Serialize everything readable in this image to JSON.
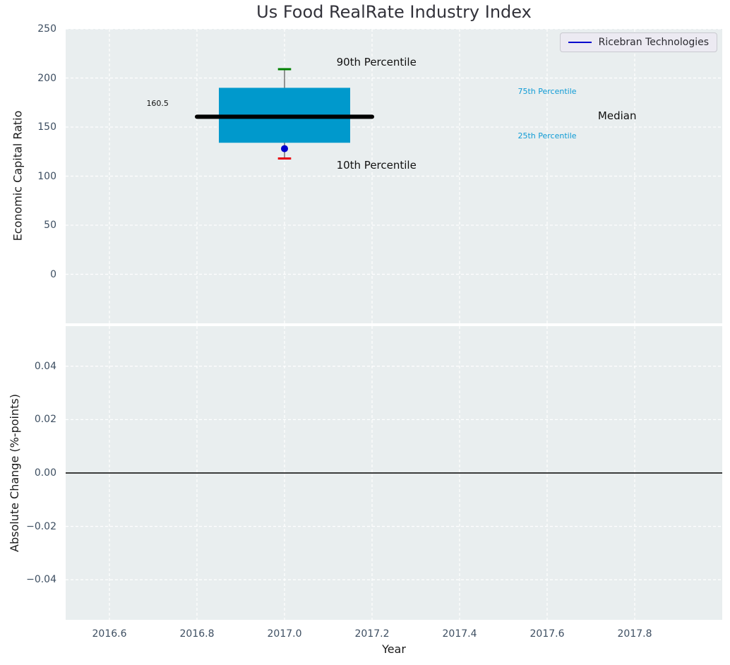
{
  "figure": {
    "title": "Us Food RealRate Industry Index"
  },
  "legend": {
    "label": "Ricebran Technologies"
  },
  "colors": {
    "figure_background": "#ffffff",
    "axes_background": "#e9eeef",
    "grid": "#ffffff",
    "tick_label": "#3d4e61",
    "title": "#32323a",
    "axis_label": "#1a1a1a",
    "box_fill": "#0099cc",
    "median_line": "#000000",
    "whisker": "#555555",
    "p90_cap": "#008000",
    "p10_cap": "#e8000b",
    "company_marker": "#0000cd",
    "legend_line": "#0000cd",
    "legend_background": "#eceaf2",
    "legend_border": "#c9c9d0",
    "legend_text": "#2b2b31",
    "percentile_text": "#0f9bd5",
    "annotation_text": "#111111",
    "zero_line": "#000000"
  },
  "chart_data": [
    {
      "type": "boxplot",
      "title": "Us Food RealRate Industry Index",
      "ylabel": "Economic Capital Ratio",
      "xlim": [
        2016.5,
        2018.0
      ],
      "ylim": [
        -50,
        250
      ],
      "yticks": [
        250,
        200,
        150,
        100,
        50,
        0
      ],
      "ytick_labels": [
        "250",
        "200",
        "150",
        "100",
        "50",
        "0"
      ],
      "xticks": [
        2016.6,
        2016.8,
        2017.0,
        2017.2,
        2017.4,
        2017.6,
        2017.8
      ],
      "xtick_labels": [],
      "grid": "white-dashed",
      "legend_position": "upper right",
      "box": {
        "x": 2017.0,
        "p10": 118,
        "p25": 134,
        "median": 160.5,
        "p75": 190,
        "p90": 209,
        "box_halfwidth": 0.15,
        "median_halfwidth": 0.2,
        "cap_halfwidth": 0.015
      },
      "company_series": {
        "name": "Ricebran Technologies",
        "x": [
          2017.0
        ],
        "y": [
          128
        ]
      },
      "annotations": [
        {
          "text": "90th Percentile",
          "x": 2017.21,
          "y": 216,
          "color": "#111111",
          "size": 15
        },
        {
          "text": "10th Percentile",
          "x": 2017.21,
          "y": 111,
          "color": "#111111",
          "size": 15
        },
        {
          "text": "160.5",
          "x": 2016.71,
          "y": 174,
          "color": "#111111",
          "size": 11
        },
        {
          "text": "75th Percentile",
          "x": 2017.6,
          "y": 186,
          "color": "#0f9bd5",
          "size": 11
        },
        {
          "text": "25th Percentile",
          "x": 2017.6,
          "y": 141,
          "color": "#0f9bd5",
          "size": 11
        },
        {
          "text": "Median",
          "x": 2017.76,
          "y": 161.5,
          "color": "#111111",
          "size": 15
        }
      ]
    },
    {
      "type": "line",
      "ylabel": "Absolute Change (%-points)",
      "xlabel": "Year",
      "xlim": [
        2016.5,
        2018.0
      ],
      "ylim": [
        -0.055,
        0.055
      ],
      "yticks": [
        0.04,
        0.02,
        0,
        -0.02,
        -0.04
      ],
      "ytick_labels": [
        "0.04",
        "0.02",
        "0.00",
        "−0.02",
        "−0.04"
      ],
      "xticks": [
        2016.6,
        2016.8,
        2017.0,
        2017.2,
        2017.4,
        2017.6,
        2017.8
      ],
      "xtick_labels": [
        "2016.6",
        "2016.8",
        "2017.0",
        "2017.2",
        "2017.4",
        "2017.6",
        "2017.8"
      ],
      "zero_line_y": 0,
      "series": []
    }
  ]
}
